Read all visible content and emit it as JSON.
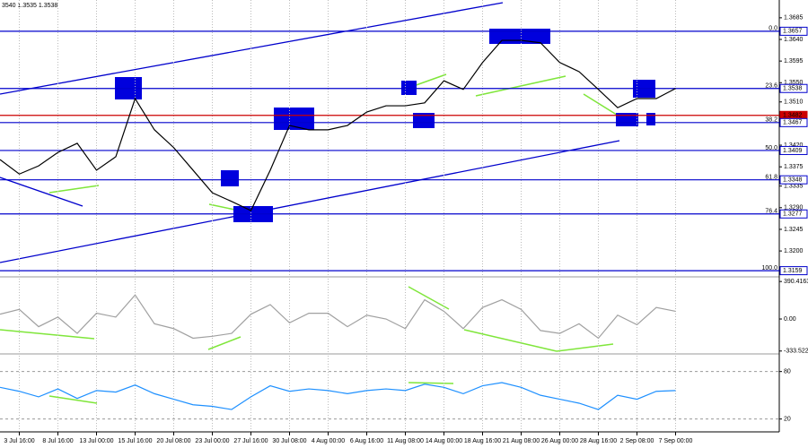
{
  "chart_data": [
    {
      "type": "line",
      "title": "3540 1.3535 1.3538",
      "color": "#000000",
      "categories": [
        null,
        "3 Jul 16:00",
        null,
        "8 Jul 16:00",
        null,
        "13 Jul 00:00",
        null,
        "15 Jul 16:00",
        null,
        "20 Jul 08:00",
        null,
        "23 Jul 00:00",
        null,
        "27 Jul 16:00",
        null,
        "30 Jul 08:00",
        null,
        "4 Aug 00:00",
        null,
        "6 Aug 16:00",
        null,
        "11 Aug 08:00",
        null,
        "14 Aug 00:00",
        null,
        "18 Aug 16:00",
        null,
        "21 Aug 08:00",
        null,
        "26 Aug 00:00",
        null,
        "28 Aug 16:00",
        null,
        "2 Sep 08:00",
        null,
        "7 Sep 00:00"
      ],
      "values": [
        1.339,
        1.336,
        1.3377,
        1.3405,
        1.3424,
        1.3368,
        1.3396,
        1.3517,
        1.3452,
        1.3415,
        1.3368,
        1.3321,
        1.3303,
        1.3284,
        1.3368,
        1.3461,
        1.3452,
        1.3452,
        1.3461,
        1.3489,
        1.3502,
        1.3502,
        1.3508,
        1.3554,
        1.3536,
        1.3592,
        1.3638,
        1.3638,
        1.3633,
        1.3592,
        1.3573,
        1.3536,
        1.3498,
        1.3517,
        1.3517,
        1.3538
      ],
      "ylim": [
        1.3148,
        1.3722
      ],
      "yticks": [
        1.3685,
        {
          "value": 1.364,
          "label": "1.3640"
        },
        1.3595,
        {
          "value": 1.355,
          "label": "1.3550"
        },
        {
          "value": 1.351,
          "label": "1.3510"
        },
        {
          "value": 1.342,
          "label": "1.3420"
        },
        1.3375,
        1.3335,
        {
          "value": 1.329,
          "label": "1.3290"
        },
        1.3245,
        {
          "value": 1.32,
          "label": "1.3200"
        }
      ],
      "grid": true,
      "level_color": "#0000cc",
      "levels": [
        {
          "price": 1.3657,
          "fib": {
            "value": 0,
            "label": "0.0"
          }
        },
        {
          "price": 1.3538,
          "fib": 23.6
        },
        {
          "price": 1.3482,
          "color": "#cc0000"
        },
        {
          "price": 1.3467,
          "fib": 38.2
        },
        {
          "price": 1.3409,
          "fib": {
            "value": 50,
            "label": "50.0"
          }
        },
        {
          "price": 1.3348,
          "fib": 61.8
        },
        {
          "price": 1.3277,
          "fib": 76.4
        },
        {
          "price": 1.3159,
          "fib": {
            "value": 100,
            "label": "100.0"
          }
        }
      ]
    },
    {
      "type": "line",
      "color": "#a0a0a0",
      "values": [
        50,
        100,
        -80,
        20,
        -150,
        60,
        20,
        250,
        -50,
        -100,
        -200,
        -180,
        -150,
        50,
        150,
        -40,
        60,
        60,
        -80,
        40,
        0,
        -100,
        200,
        80,
        -100,
        120,
        200,
        100,
        -120,
        -150,
        -50,
        -200,
        40,
        -60,
        120,
        80
      ],
      "ylim": [
        -345,
        420
      ],
      "yticks": [
        390.4163,
        {
          "value": 0,
          "label": "0.00"
        },
        -333.522
      ],
      "grid": true
    },
    {
      "type": "line",
      "color": "#1e90ff",
      "values": [
        60,
        55,
        48,
        58,
        46,
        56,
        54,
        63,
        52,
        45,
        38,
        36,
        32,
        48,
        62,
        55,
        58,
        56,
        52,
        56,
        58,
        56,
        64,
        60,
        52,
        62,
        66,
        60,
        50,
        45,
        40,
        32,
        50,
        45,
        55,
        56
      ],
      "ylim": [
        6,
        100
      ],
      "yticks": [
        80,
        20
      ],
      "grid": true,
      "reference_lines": true
    }
  ]
}
